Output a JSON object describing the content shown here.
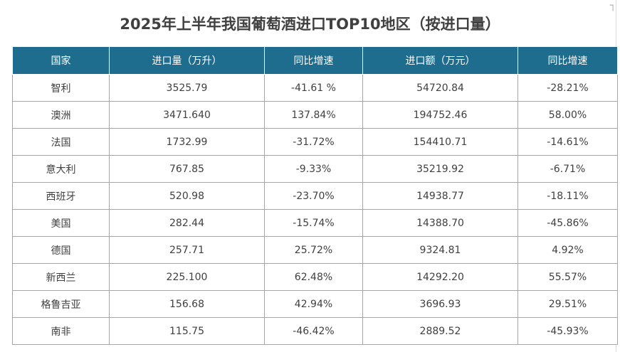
{
  "chart_data": {
    "type": "table",
    "title": "2025年上半年我国葡萄酒进口TOP10地区（按进口量）",
    "columns": [
      "国家",
      "进口量（万升）",
      "同比增速",
      "进口额（万元）",
      "同比增速"
    ],
    "rows": [
      [
        "智利",
        "3525.79",
        "-41.61 %",
        "54720.84",
        "-28.21%"
      ],
      [
        "澳洲",
        "3471.640",
        "137.84%",
        "194752.46",
        "58.00%"
      ],
      [
        "法国",
        "1732.99",
        "-31.72%",
        "154410.71",
        "-14.61%"
      ],
      [
        "意大利",
        "767.85",
        "-9.33%",
        "35219.92",
        "-6.71%"
      ],
      [
        "西班牙",
        "520.98",
        "-23.70%",
        "14938.77",
        "-18.11%"
      ],
      [
        "美国",
        "282.44",
        "-15.74%",
        "14388.70",
        "-45.86%"
      ],
      [
        "德国",
        "257.71",
        "25.72%",
        "9324.81",
        "4.92%"
      ],
      [
        "新西兰",
        "225.100",
        "62.48%",
        "14292.20",
        "55.57%"
      ],
      [
        "格鲁吉亚",
        "156.68",
        "42.94%",
        "3696.93",
        "29.51%"
      ],
      [
        "南非",
        "115.75",
        "-46.42%",
        "2889.52",
        "-45.93%"
      ]
    ]
  },
  "colors": {
    "header_bg": "#1f6d8e",
    "header_text": "#ffffff",
    "cell_text": "#404040",
    "border": "#a6a6a6"
  },
  "corner_icon": "crop-mark-icon"
}
